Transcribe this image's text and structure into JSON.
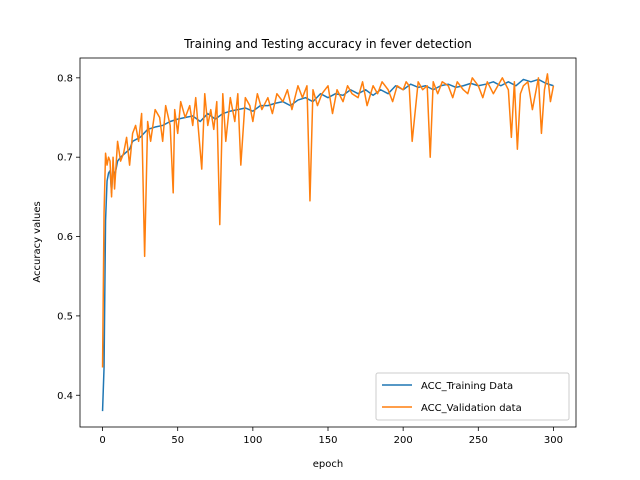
{
  "chart_data": {
    "type": "line",
    "title": "Training and Testing accuracy in fever detection",
    "xlabel": "epoch",
    "ylabel": "Accuracy values",
    "xlim": [
      -15,
      315
    ],
    "ylim": [
      0.36,
      0.825
    ],
    "xticks": [
      0,
      50,
      100,
      150,
      200,
      250,
      300
    ],
    "yticks": [
      0.4,
      0.5,
      0.6,
      0.7,
      0.8
    ],
    "grid": false,
    "legend_position": "lower-right",
    "series": [
      {
        "name": "ACC_Training Data",
        "color": "#1f77b4",
        "x": [
          0,
          1,
          2,
          3,
          4,
          5,
          6,
          7,
          8,
          10,
          12,
          15,
          18,
          20,
          25,
          30,
          35,
          40,
          45,
          50,
          55,
          60,
          65,
          70,
          75,
          80,
          85,
          90,
          95,
          100,
          105,
          110,
          115,
          120,
          125,
          130,
          135,
          140,
          145,
          150,
          155,
          160,
          165,
          170,
          175,
          180,
          185,
          190,
          195,
          200,
          205,
          210,
          215,
          220,
          225,
          230,
          235,
          240,
          245,
          250,
          255,
          260,
          265,
          270,
          275,
          280,
          285,
          290,
          295,
          300
        ],
        "y": [
          0.38,
          0.435,
          0.62,
          0.67,
          0.68,
          0.683,
          0.655,
          0.69,
          0.675,
          0.695,
          0.7,
          0.705,
          0.71,
          0.72,
          0.725,
          0.735,
          0.738,
          0.74,
          0.745,
          0.748,
          0.75,
          0.752,
          0.745,
          0.755,
          0.748,
          0.755,
          0.758,
          0.76,
          0.762,
          0.758,
          0.765,
          0.765,
          0.768,
          0.77,
          0.765,
          0.772,
          0.775,
          0.77,
          0.78,
          0.775,
          0.78,
          0.778,
          0.785,
          0.78,
          0.785,
          0.778,
          0.785,
          0.78,
          0.79,
          0.785,
          0.792,
          0.788,
          0.79,
          0.785,
          0.79,
          0.792,
          0.788,
          0.79,
          0.793,
          0.79,
          0.792,
          0.795,
          0.79,
          0.795,
          0.79,
          0.798,
          0.795,
          0.798,
          0.793,
          0.79
        ]
      },
      {
        "name": "ACC_Validation data",
        "color": "#ff7f0e",
        "x": [
          0,
          1,
          2,
          3,
          4,
          5,
          6,
          7,
          8,
          10,
          12,
          14,
          16,
          18,
          20,
          22,
          24,
          26,
          28,
          30,
          32,
          35,
          38,
          40,
          42,
          45,
          47,
          48,
          50,
          52,
          55,
          58,
          60,
          62,
          64,
          66,
          68,
          70,
          72,
          74,
          76,
          78,
          80,
          82,
          85,
          88,
          90,
          92,
          95,
          98,
          100,
          103,
          106,
          110,
          113,
          116,
          120,
          123,
          126,
          130,
          133,
          136,
          138,
          140,
          143,
          146,
          150,
          153,
          156,
          160,
          163,
          166,
          170,
          173,
          176,
          180,
          183,
          186,
          190,
          193,
          196,
          200,
          202,
          204,
          206,
          210,
          213,
          216,
          218,
          220,
          223,
          226,
          230,
          233,
          236,
          240,
          243,
          246,
          250,
          253,
          256,
          260,
          263,
          266,
          270,
          272,
          274,
          276,
          278,
          280,
          283,
          286,
          290,
          292,
          294,
          296,
          298,
          300
        ],
        "y": [
          0.435,
          0.63,
          0.705,
          0.69,
          0.7,
          0.695,
          0.65,
          0.7,
          0.66,
          0.72,
          0.695,
          0.705,
          0.725,
          0.69,
          0.73,
          0.74,
          0.72,
          0.755,
          0.575,
          0.745,
          0.72,
          0.76,
          0.75,
          0.72,
          0.765,
          0.74,
          0.655,
          0.76,
          0.73,
          0.77,
          0.75,
          0.765,
          0.74,
          0.775,
          0.73,
          0.685,
          0.78,
          0.74,
          0.76,
          0.735,
          0.77,
          0.615,
          0.78,
          0.72,
          0.775,
          0.745,
          0.78,
          0.69,
          0.775,
          0.765,
          0.745,
          0.78,
          0.76,
          0.775,
          0.755,
          0.78,
          0.77,
          0.785,
          0.76,
          0.79,
          0.775,
          0.79,
          0.645,
          0.785,
          0.765,
          0.78,
          0.79,
          0.755,
          0.785,
          0.77,
          0.79,
          0.78,
          0.775,
          0.795,
          0.765,
          0.79,
          0.78,
          0.795,
          0.785,
          0.77,
          0.79,
          0.785,
          0.795,
          0.79,
          0.72,
          0.795,
          0.785,
          0.79,
          0.7,
          0.795,
          0.78,
          0.795,
          0.79,
          0.775,
          0.795,
          0.785,
          0.78,
          0.8,
          0.79,
          0.775,
          0.795,
          0.78,
          0.79,
          0.8,
          0.785,
          0.725,
          0.795,
          0.71,
          0.78,
          0.79,
          0.795,
          0.76,
          0.8,
          0.73,
          0.785,
          0.805,
          0.77,
          0.79
        ]
      }
    ]
  }
}
